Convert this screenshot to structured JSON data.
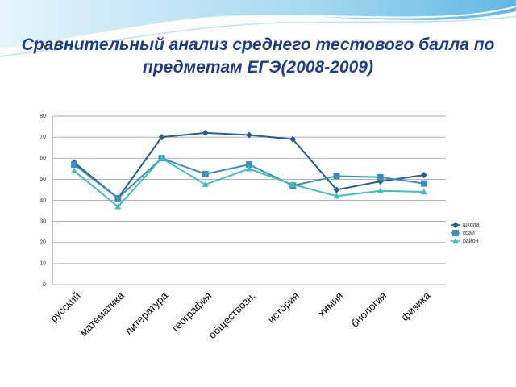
{
  "chart_data": {
    "type": "line",
    "title": "Сравнительный анализ среднего тестового балла по предметам ЕГЭ(2008-2009)",
    "categories": [
      "русский",
      "математика",
      "литература",
      "география",
      "обществозн.",
      "история",
      "химия",
      "биология",
      "физика"
    ],
    "series": [
      {
        "name": "школа",
        "color": "#2a5d8c",
        "marker": "diamond",
        "values": [
          58,
          41,
          70,
          72,
          71,
          69,
          45,
          49,
          52
        ]
      },
      {
        "name": "край",
        "color": "#3a8fbd",
        "marker": "square",
        "values": [
          57,
          41,
          60,
          52.5,
          57,
          47,
          51.5,
          51,
          48
        ]
      },
      {
        "name": "район",
        "color": "#45bcbc",
        "marker": "triangle",
        "values": [
          54,
          37,
          60,
          47.5,
          55,
          47.5,
          42,
          44.5,
          44
        ]
      }
    ],
    "ylim": [
      0,
      80
    ],
    "yticks": [
      0,
      10,
      20,
      30,
      40,
      50,
      60,
      70,
      80
    ],
    "grid": true,
    "legend": "right"
  }
}
